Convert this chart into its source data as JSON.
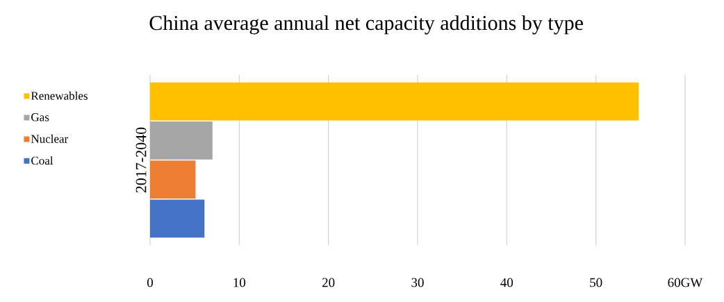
{
  "chart_data": {
    "type": "bar",
    "orientation": "horizontal",
    "title": "China average annual net capacity additions by type",
    "ylabel": "2017-2040",
    "categories": [
      null
    ],
    "series": [
      {
        "name": "Coal",
        "color": "#4472c4",
        "values": [
          6.1
        ]
      },
      {
        "name": "Nuclear",
        "color": "#ed7d31",
        "values": [
          5.1
        ]
      },
      {
        "name": "Gas",
        "color": "#a5a5a5",
        "values": [
          7
        ]
      },
      {
        "name": "Renewables",
        "color": "#ffc000",
        "values": [
          54.8
        ]
      }
    ],
    "xlim": [
      0,
      60
    ],
    "xticks": [
      0,
      10,
      20,
      30,
      40,
      50,
      {
        "value": 60,
        "label": "60GW"
      }
    ],
    "grid": "x",
    "legend": "left"
  }
}
